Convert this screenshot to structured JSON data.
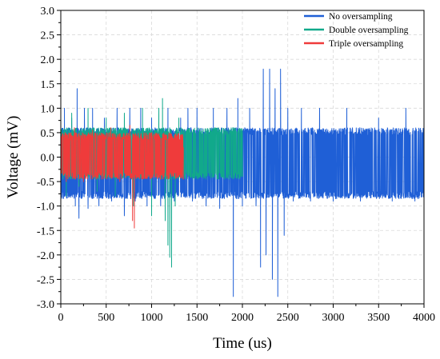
{
  "chart_data": {
    "type": "line",
    "title": "",
    "xlabel": "Time (us)",
    "ylabel": "Voltage (mV)",
    "xlim": [
      0,
      4000
    ],
    "ylim": [
      -3.0,
      3.0
    ],
    "x_ticks": [
      "0",
      "500",
      "1000",
      "1500",
      "2000",
      "2500",
      "3000",
      "3500",
      "4000"
    ],
    "y_ticks": [
      "3.0",
      "2.5",
      "2.0",
      "1.5",
      "1.0",
      "0.5",
      "0.0",
      "-0.5",
      "-1.0",
      "-1.5",
      "-2.0",
      "-2.5",
      "-3.0"
    ],
    "grid": true,
    "legend_position": "top-right",
    "series": [
      {
        "name": "No oversampling",
        "color": "#1f5fd6",
        "x_range": [
          0,
          4000
        ],
        "typical_band": [
          -0.85,
          0.6
        ],
        "samples": [
          [
            0,
            -0.2
          ],
          [
            40,
            1.0
          ],
          [
            80,
            -0.6
          ],
          [
            120,
            0.8
          ],
          [
            160,
            -1.0
          ],
          [
            180,
            1.4
          ],
          [
            200,
            -1.25
          ],
          [
            260,
            1.0
          ],
          [
            300,
            -1.05
          ],
          [
            350,
            1.0
          ],
          [
            420,
            -1.0
          ],
          [
            480,
            0.8
          ],
          [
            560,
            -0.9
          ],
          [
            620,
            1.0
          ],
          [
            700,
            -1.2
          ],
          [
            760,
            1.0
          ],
          [
            820,
            -0.9
          ],
          [
            880,
            1.0
          ],
          [
            950,
            -1.0
          ],
          [
            1000,
            0.8
          ],
          [
            1100,
            -1.0
          ],
          [
            1180,
            1.0
          ],
          [
            1250,
            -0.9
          ],
          [
            1320,
            0.8
          ],
          [
            1400,
            1.0
          ],
          [
            1450,
            -0.9
          ],
          [
            1500,
            1.0
          ],
          [
            1600,
            -1.0
          ],
          [
            1680,
            1.0
          ],
          [
            1750,
            -1.05
          ],
          [
            1830,
            1.0
          ],
          [
            1900,
            -2.85
          ],
          [
            1950,
            1.2
          ],
          [
            2000,
            -1.0
          ],
          [
            2080,
            1.0
          ],
          [
            2150,
            -1.0
          ],
          [
            2200,
            -2.25
          ],
          [
            2230,
            1.8
          ],
          [
            2260,
            -2.0
          ],
          [
            2300,
            1.8
          ],
          [
            2330,
            -2.5
          ],
          [
            2360,
            1.4
          ],
          [
            2390,
            -2.85
          ],
          [
            2420,
            1.8
          ],
          [
            2460,
            -1.6
          ],
          [
            2500,
            1.0
          ],
          [
            2560,
            -0.9
          ],
          [
            2650,
            1.0
          ],
          [
            2750,
            -0.9
          ],
          [
            2850,
            1.0
          ],
          [
            3000,
            -0.9
          ],
          [
            3150,
            1.0
          ],
          [
            3300,
            -0.9
          ],
          [
            3500,
            0.8
          ],
          [
            3650,
            -0.9
          ],
          [
            3800,
            1.0
          ],
          [
            3900,
            -0.9
          ],
          [
            4000,
            0.6
          ]
        ]
      },
      {
        "name": "Double oversampling",
        "color": "#11a98b",
        "x_range": [
          0,
          2000
        ],
        "typical_band": [
          -0.45,
          0.6
        ],
        "samples": [
          [
            0,
            0.6
          ],
          [
            60,
            -0.8
          ],
          [
            120,
            0.9
          ],
          [
            200,
            -0.6
          ],
          [
            300,
            1.0
          ],
          [
            400,
            -0.7
          ],
          [
            500,
            0.8
          ],
          [
            600,
            -0.8
          ],
          [
            700,
            0.9
          ],
          [
            800,
            -1.0
          ],
          [
            900,
            1.0
          ],
          [
            1000,
            -1.2
          ],
          [
            1080,
            1.0
          ],
          [
            1120,
            1.2
          ],
          [
            1150,
            -1.3
          ],
          [
            1180,
            -1.8
          ],
          [
            1200,
            -2.05
          ],
          [
            1220,
            -2.25
          ],
          [
            1260,
            -1.0
          ],
          [
            1300,
            0.8
          ],
          [
            1400,
            -0.4
          ],
          [
            1500,
            0.6
          ],
          [
            1600,
            -0.45
          ],
          [
            1700,
            0.6
          ],
          [
            1800,
            -0.45
          ],
          [
            1900,
            0.6
          ],
          [
            2000,
            -0.4
          ]
        ]
      },
      {
        "name": "Triple oversampling",
        "color": "#ef3b3b",
        "x_range": [
          0,
          1350
        ],
        "typical_band": [
          -0.45,
          0.5
        ],
        "samples": [
          [
            0,
            0.7
          ],
          [
            60,
            -0.5
          ],
          [
            150,
            0.6
          ],
          [
            250,
            -0.5
          ],
          [
            350,
            0.55
          ],
          [
            450,
            -0.45
          ],
          [
            550,
            0.6
          ],
          [
            650,
            -0.5
          ],
          [
            760,
            0.65
          ],
          [
            790,
            -1.3
          ],
          [
            810,
            -1.45
          ],
          [
            830,
            0.3
          ],
          [
            900,
            -0.4
          ],
          [
            1000,
            0.5
          ],
          [
            1100,
            -0.45
          ],
          [
            1200,
            0.5
          ],
          [
            1300,
            -0.4
          ],
          [
            1350,
            0.2
          ]
        ]
      }
    ]
  }
}
